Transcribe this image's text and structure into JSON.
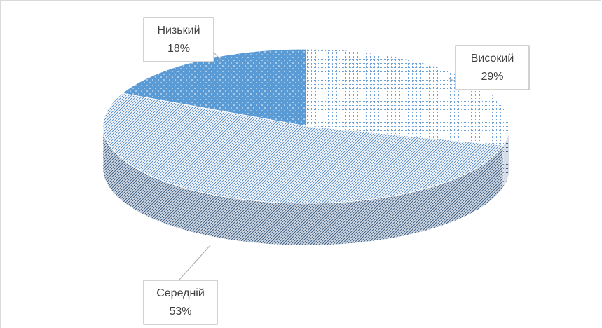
{
  "chart_data": {
    "type": "pie",
    "categories": [
      "Високий",
      "Середній",
      "Низький"
    ],
    "values": [
      29,
      53,
      18
    ],
    "value_labels": [
      "29%",
      "53%",
      "18%"
    ],
    "colors": [
      "#6fa3d8",
      "#5b8fc9",
      "#5b9bd5"
    ]
  }
}
